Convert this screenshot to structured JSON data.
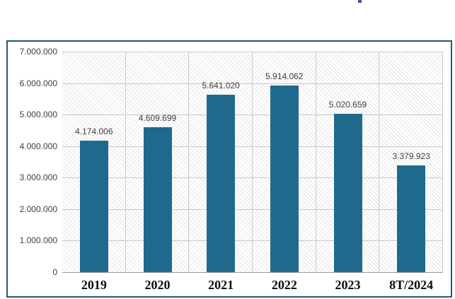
{
  "chart_data": {
    "type": "bar",
    "title": "",
    "xlabel": "",
    "ylabel": "",
    "categories": [
      "2019",
      "2020",
      "2021",
      "2022",
      "2023",
      "8T/2024"
    ],
    "values": [
      4174006,
      4609699,
      5641020,
      5914062,
      5020659,
      3379923
    ],
    "data_labels": [
      "4.174.006",
      "4.609.699",
      "5.641.020",
      "5.914.062",
      "5.020.659",
      "3.379.923"
    ],
    "y_ticks": [
      0,
      1000000,
      2000000,
      3000000,
      4000000,
      5000000,
      6000000,
      7000000
    ],
    "y_tick_labels": [
      "0",
      "1.000.000",
      "2.000.000",
      "3.000.000",
      "4.000.000",
      "5.000.000",
      "6.000.000",
      "7.000.000"
    ],
    "ylim": [
      0,
      7000000
    ],
    "grid": true,
    "legend": false,
    "plot_background": "diagonal-hatch",
    "colors": {
      "bar": "#1f6a8c",
      "frame_border": "#1f5c74",
      "gridline": "#c9c9c9",
      "axis_line": "#9b9b9b",
      "tick_label": "#3f3f3f",
      "category_label": "#0d0d0d",
      "hatch_line": "#e4e4e4"
    }
  }
}
